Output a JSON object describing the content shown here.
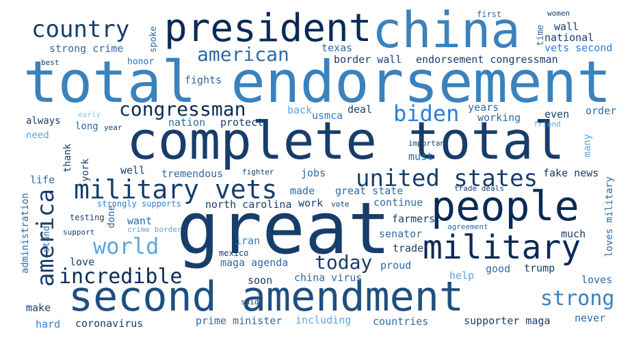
{
  "colors": {
    "navy": "#0b2a55",
    "dark": "#173d6b",
    "mid": "#2d6aa3",
    "steel": "#3a82bc",
    "bright": "#2b7fd6",
    "light": "#5aa6e0",
    "pale": "#8ec3ea"
  },
  "words": [
    "total endorsement",
    "complete total",
    "great",
    "second amendment",
    "china",
    "president",
    "people",
    "military",
    "military vets",
    "united states",
    "country",
    "america",
    "american",
    "congressman",
    "world",
    "incredible",
    "biden",
    "today",
    "strong",
    "strong crime",
    "texas",
    "border wall",
    "endorsement congressman",
    "national",
    "vets second",
    "wall",
    "time",
    "first",
    "women",
    "spoke",
    "honor",
    "fights",
    "best",
    "years",
    "order",
    "even",
    "working",
    "friend",
    "early",
    "year",
    "always",
    "need",
    "long",
    "back",
    "usmca",
    "deal",
    "nation",
    "protect",
    "important",
    "must",
    "many",
    "thank",
    "york",
    "well",
    "tremendous",
    "fighter",
    "jobs",
    "fake news",
    "life",
    "made",
    "great state",
    "trade deals",
    "strongly supports",
    "north carolina",
    "work",
    "vote",
    "continue",
    "administration",
    "done",
    "testing",
    "want",
    "farmers",
    "agreement",
    "loves military",
    "support",
    "crime border",
    "stand",
    "iran",
    "senator",
    "much",
    "mexico",
    "love",
    "trade",
    "maga agenda",
    "proud",
    "trump",
    "good",
    "soon",
    "china virus",
    "help",
    "loves",
    "make",
    "said",
    "hard",
    "coronavirus",
    "prime minister",
    "including",
    "countries",
    "supporter maga",
    "never"
  ]
}
